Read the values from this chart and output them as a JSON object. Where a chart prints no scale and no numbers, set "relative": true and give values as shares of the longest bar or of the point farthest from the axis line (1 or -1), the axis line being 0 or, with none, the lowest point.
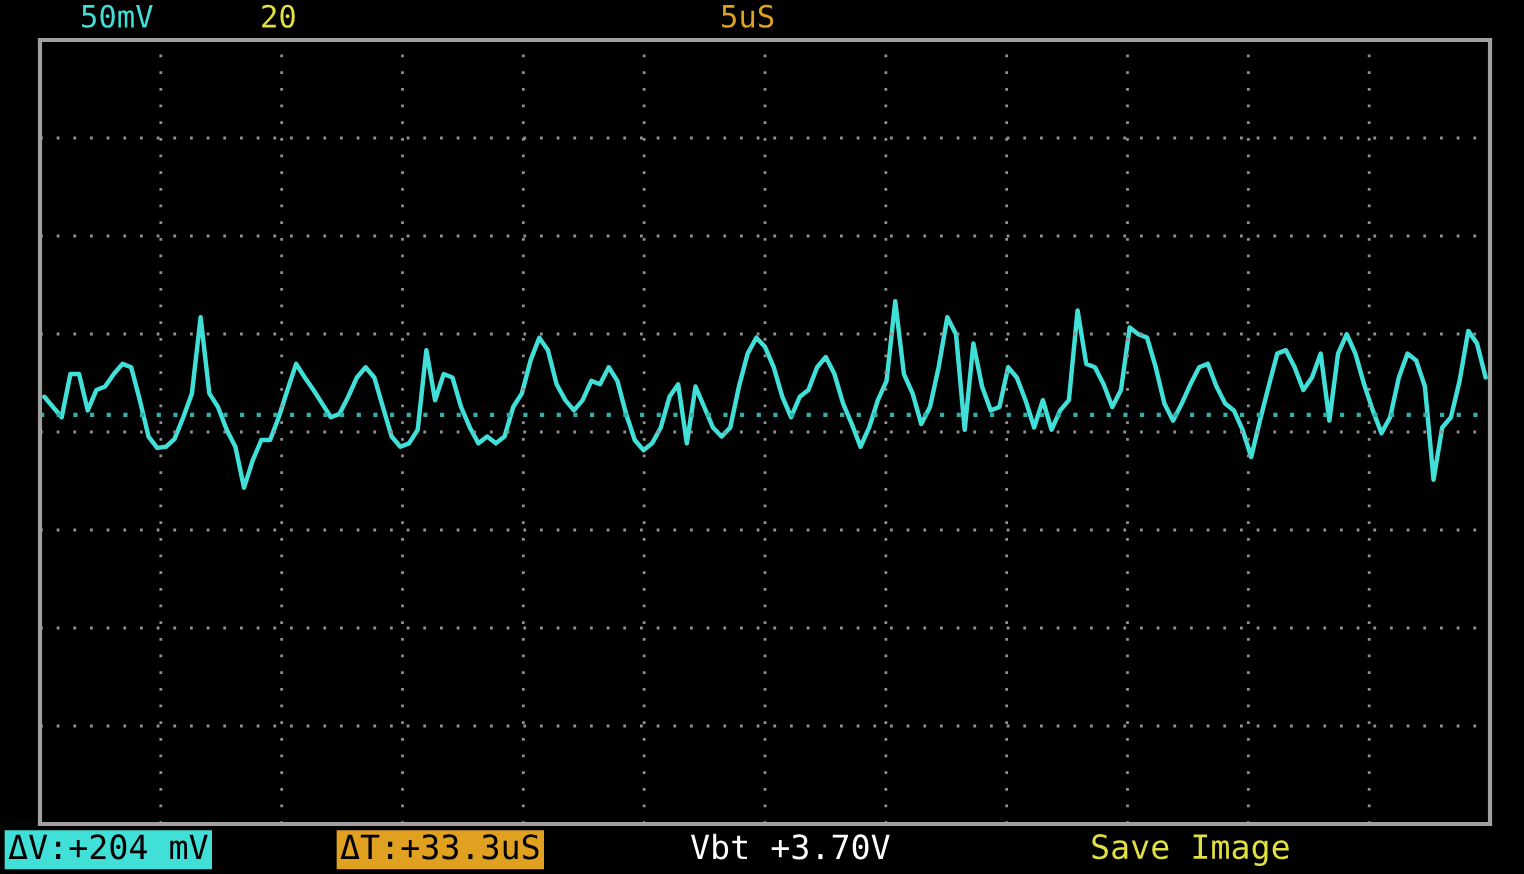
{
  "chart_data": {
    "type": "line",
    "relative": true,
    "grid": true,
    "tick_labels": false,
    "ref_lines": [
      {
        "axis": "y",
        "value": 0,
        "color": "#30b0a8",
        "line_style": "dotted"
      }
    ],
    "categories": [
      null,
      null,
      null,
      null,
      null,
      null,
      null,
      null,
      null,
      null,
      null,
      null,
      null,
      null,
      null,
      null,
      null,
      null,
      null,
      null,
      null,
      null,
      null,
      null,
      null,
      null,
      null,
      null,
      null,
      null,
      null,
      null,
      null,
      null,
      null,
      null,
      null,
      null,
      null,
      null,
      null,
      null,
      null,
      null,
      null,
      null,
      null,
      null,
      null,
      null,
      null,
      null,
      null,
      null,
      null,
      null,
      null,
      null,
      null,
      null,
      null,
      null,
      null,
      null,
      null,
      null,
      null,
      null,
      null,
      null,
      null,
      null,
      null,
      null,
      null,
      null,
      null,
      null,
      null,
      null,
      null,
      null,
      null,
      null,
      null,
      null,
      null,
      null,
      null,
      null,
      null,
      null,
      null,
      null,
      null,
      null,
      null,
      null,
      null,
      null,
      null,
      null,
      null,
      null,
      null,
      null,
      null,
      null,
      null,
      null,
      null,
      null,
      null,
      null,
      null,
      null,
      null,
      null,
      null,
      null,
      null,
      null,
      null,
      null,
      null,
      null,
      null,
      null,
      null,
      null,
      null,
      null,
      null,
      null,
      null,
      null,
      null,
      null,
      null,
      null,
      null,
      null,
      null,
      null,
      null,
      null,
      null,
      null,
      null,
      null,
      null,
      null,
      null,
      null,
      null,
      null,
      null,
      null,
      null,
      null,
      null,
      null,
      null,
      null,
      null,
      null,
      null
    ],
    "annotations": [
      "50mV",
      "20",
      "5uS",
      "ΔV:+204 mV",
      "ΔT:+33.3uS",
      "Vbt +3.70V",
      "Save Image"
    ],
    "series": [
      {
        "color": "#40e0d8",
        "values": [
          0.16,
          0.07,
          -0.02,
          0.36,
          0.36,
          0.04,
          0.22,
          0.25,
          0.36,
          0.45,
          0.42,
          0.13,
          -0.19,
          -0.29,
          -0.28,
          -0.21,
          -0.02,
          0.19,
          0.86,
          0.19,
          0.07,
          -0.13,
          -0.28,
          -0.64,
          -0.4,
          -0.22,
          -0.22,
          -0.02,
          0.22,
          0.45,
          0.33,
          0.22,
          0.1,
          -0.02,
          0.01,
          0.16,
          0.33,
          0.42,
          0.33,
          0.07,
          -0.19,
          -0.28,
          -0.25,
          -0.13,
          0.57,
          0.13,
          0.36,
          0.33,
          0.07,
          -0.11,
          -0.25,
          -0.19,
          -0.25,
          -0.19,
          0.07,
          0.19,
          0.48,
          0.68,
          0.57,
          0.27,
          0.13,
          0.04,
          0.13,
          0.3,
          0.27,
          0.42,
          0.3,
          0.01,
          -0.22,
          -0.31,
          -0.25,
          -0.11,
          0.16,
          0.27,
          -0.25,
          0.25,
          0.07,
          -0.11,
          -0.19,
          -0.11,
          0.25,
          0.54,
          0.68,
          0.6,
          0.42,
          0.16,
          -0.02,
          0.16,
          0.22,
          0.42,
          0.51,
          0.36,
          0.1,
          -0.08,
          -0.28,
          -0.11,
          0.13,
          0.3,
          1,
          0.36,
          0.19,
          -0.08,
          0.07,
          0.42,
          0.86,
          0.71,
          -0.13,
          0.63,
          0.25,
          0.04,
          0.07,
          0.42,
          0.33,
          0.13,
          -0.11,
          0.13,
          -0.13,
          0.04,
          0.13,
          0.92,
          0.45,
          0.42,
          0.27,
          0.07,
          0.22,
          0.77,
          0.71,
          0.68,
          0.42,
          0.1,
          -0.05,
          0.1,
          0.27,
          0.42,
          0.45,
          0.25,
          0.1,
          0.04,
          -0.13,
          -0.37,
          -0.05,
          0.25,
          0.54,
          0.57,
          0.42,
          0.22,
          0.33,
          0.54,
          -0.05,
          0.54,
          0.71,
          0.54,
          0.27,
          0.04,
          -0.16,
          -0.02,
          0.33,
          0.54,
          0.48,
          0.25,
          -0.57,
          -0.11,
          -0.02,
          0.3,
          0.74,
          0.63,
          0.33
        ]
      }
    ]
  }
}
